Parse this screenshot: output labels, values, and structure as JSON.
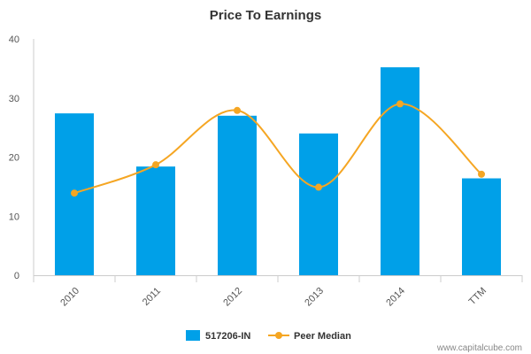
{
  "chart_data": {
    "type": "bar",
    "title": "Price To Earnings",
    "xlabel": "",
    "ylabel": "",
    "categories": [
      "2010",
      "2011",
      "2012",
      "2013",
      "2014",
      "TTM"
    ],
    "ylim": [
      0,
      40
    ],
    "yticks": [
      0,
      10,
      20,
      30,
      40
    ],
    "grid": false,
    "legend_position": "bottom",
    "series": [
      {
        "name": "517206-IN",
        "type": "bar",
        "color": "#00a0e8",
        "values": [
          27.4,
          18.4,
          27.0,
          24.0,
          35.2,
          16.4
        ]
      },
      {
        "name": "Peer Median",
        "type": "line",
        "smooth": true,
        "color": "#f5a623",
        "values": [
          13.9,
          18.7,
          27.9,
          14.9,
          29.0,
          17.1
        ]
      }
    ]
  },
  "watermark": "www.capitalcube.com"
}
